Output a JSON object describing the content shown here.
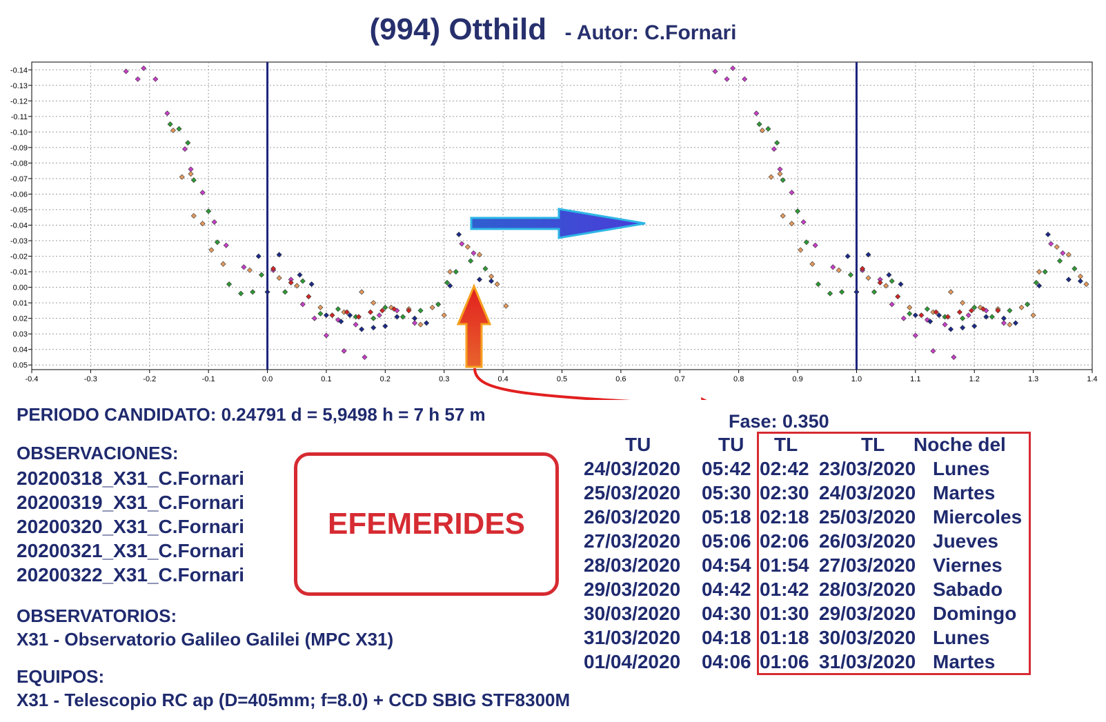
{
  "header": {
    "title": "(994) Otthild",
    "subtitle": "- Autor: C.Fornari"
  },
  "chart_data": {
    "type": "scatter",
    "title": "(994) Otthild",
    "subtitle": "- Autor: C.Fornari",
    "xlabel": "",
    "ylabel": "",
    "xlim": [
      -0.4,
      1.4
    ],
    "ylim": [
      -0.145,
      0.053
    ],
    "y_inverted": true,
    "grid": true,
    "x_ticks": [
      "-0.4",
      "-0.3",
      "-0.2",
      "-0.1",
      "0.0",
      "0.1",
      "0.2",
      "0.3",
      "0.4",
      "0.5",
      "0.6",
      "0.7",
      "0.8",
      "0.9",
      "1.0",
      "1.1",
      "1.2",
      "1.3",
      "1.4"
    ],
    "y_ticks": [
      "-0.14",
      "-0.13",
      "-0.12",
      "-0.11",
      "-0.10",
      "-0.09",
      "-0.08",
      "-0.07",
      "-0.06",
      "-0.05",
      "-0.04",
      "-0.03",
      "-0.02",
      "-0.01",
      "0.00",
      "0.01",
      "0.02",
      "0.03",
      "0.04",
      "0.05"
    ],
    "vertical_lines": [
      0.0,
      1.0
    ],
    "repeat_offset": 1.0,
    "series": [
      {
        "color": "#c83fc8",
        "points": [
          [
            -0.24,
            -0.139
          ],
          [
            -0.22,
            -0.134
          ],
          [
            -0.21,
            -0.141
          ],
          [
            -0.19,
            -0.134
          ],
          [
            -0.17,
            -0.112
          ],
          [
            -0.14,
            -0.089
          ],
          [
            -0.13,
            -0.076
          ],
          [
            -0.11,
            -0.061
          ],
          [
            -0.09,
            -0.042
          ],
          [
            -0.07,
            -0.027
          ],
          [
            -0.04,
            -0.013
          ],
          [
            0.01,
            -0.011
          ],
          [
            0.04,
            -0.005
          ],
          [
            0.06,
            0.011
          ],
          [
            0.08,
            0.02
          ],
          [
            0.1,
            0.031
          ],
          [
            0.12,
            0.021
          ],
          [
            0.13,
            0.041
          ],
          [
            0.15,
            0.024
          ],
          [
            0.165,
            0.045
          ],
          [
            0.19,
            0.018
          ],
          [
            0.22,
            0.015
          ],
          [
            0.25,
            0.023
          ],
          [
            0.33,
            -0.028
          ],
          [
            0.35,
            -0.022
          ]
        ]
      },
      {
        "color": "#e49a5e",
        "points": [
          [
            -0.16,
            -0.101
          ],
          [
            -0.145,
            -0.071
          ],
          [
            -0.13,
            -0.073
          ],
          [
            -0.125,
            -0.046
          ],
          [
            -0.11,
            -0.041
          ],
          [
            -0.095,
            -0.024
          ],
          [
            -0.075,
            -0.015
          ],
          [
            -0.03,
            -0.011
          ],
          [
            0.02,
            -0.006
          ],
          [
            0.05,
            -0.001
          ],
          [
            0.09,
            0.013
          ],
          [
            0.13,
            0.016
          ],
          [
            0.16,
            0.003
          ],
          [
            0.18,
            0.01
          ],
          [
            0.21,
            0.013
          ],
          [
            0.24,
            0.014
          ],
          [
            0.26,
            0.024
          ],
          [
            0.28,
            0.013
          ],
          [
            0.3,
            0.018
          ],
          [
            0.31,
            -0.01
          ],
          [
            0.34,
            -0.026
          ],
          [
            0.36,
            -0.021
          ],
          [
            0.38,
            -0.007
          ],
          [
            0.39,
            -0.002
          ],
          [
            0.405,
            0.012
          ]
        ]
      },
      {
        "color": "#2e9a35",
        "points": [
          [
            -0.165,
            -0.105
          ],
          [
            -0.15,
            -0.102
          ],
          [
            -0.135,
            -0.093
          ],
          [
            -0.125,
            -0.069
          ],
          [
            -0.1,
            -0.049
          ],
          [
            -0.085,
            -0.029
          ],
          [
            -0.065,
            -0.002
          ],
          [
            -0.045,
            0.004
          ],
          [
            -0.025,
            0.003
          ],
          [
            -0.01,
            -0.008
          ],
          [
            0.03,
            0.003
          ],
          [
            0.06,
            -0.004
          ],
          [
            0.09,
            0.017
          ],
          [
            0.12,
            0.014
          ],
          [
            0.15,
            0.019
          ],
          [
            0.18,
            0.02
          ],
          [
            0.2,
            0.013
          ],
          [
            0.23,
            0.019
          ],
          [
            0.26,
            0.015
          ],
          [
            0.29,
            0.011
          ],
          [
            0.305,
            -0.003
          ],
          [
            0.32,
            -0.01
          ],
          [
            0.345,
            -0.017
          ],
          [
            0.37,
            -0.012
          ]
        ]
      },
      {
        "color": "#1b2b8a",
        "points": [
          [
            -0.015,
            -0.02
          ],
          [
            0.0,
            0.003
          ],
          [
            0.02,
            -0.021
          ],
          [
            0.055,
            -0.008
          ],
          [
            0.075,
            -0.002
          ],
          [
            0.1,
            0.018
          ],
          [
            0.125,
            0.022
          ],
          [
            0.14,
            0.018
          ],
          [
            0.16,
            0.027
          ],
          [
            0.18,
            0.026
          ],
          [
            0.2,
            0.025
          ],
          [
            0.22,
            0.019
          ],
          [
            0.25,
            0.02
          ],
          [
            0.27,
            0.023
          ],
          [
            0.31,
            -0.001
          ],
          [
            0.325,
            -0.034
          ],
          [
            0.36,
            -0.005
          ],
          [
            0.38,
            -0.004
          ]
        ]
      },
      {
        "color": "#d02626",
        "points": [
          [
            0.01,
            -0.012
          ],
          [
            0.04,
            -0.003
          ],
          [
            0.07,
            0.006
          ],
          [
            0.11,
            0.018
          ],
          [
            0.135,
            0.016
          ],
          [
            0.155,
            0.019
          ],
          [
            0.175,
            0.016
          ],
          [
            0.195,
            0.015
          ],
          [
            0.215,
            0.014
          ],
          [
            0.24,
            0.015
          ]
        ]
      }
    ]
  },
  "annotations": {
    "period": "PERIODO CANDIDATO: 0.24791 d = 5,9498 h = 7 h 57 m",
    "fase": "Fase: 0.350",
    "efemerides": "EFEMERIDES"
  },
  "observaciones": {
    "heading": "OBSERVACIONES:",
    "items": [
      "20200318_X31_C.Fornari",
      "20200319_X31_C.Fornari",
      "20200320_X31_C.Fornari",
      "20200321_X31_C.Fornari",
      "20200322_X31_C.Fornari"
    ]
  },
  "observatorios": {
    "heading": "OBSERVATORIOS:",
    "line": "X31 - Observatorio Galileo Galilei (MPC X31)"
  },
  "equipos": {
    "heading": "EQUIPOS:",
    "line": "X31 - Telescopio RC ap (D=405mm; f=8.0) + CCD SBIG STF8300M"
  },
  "ephemeris": {
    "headers": [
      "TU",
      "TU",
      "TL",
      "TL",
      "Noche del"
    ],
    "rows": [
      [
        "24/03/2020",
        "05:42",
        "02:42",
        "23/03/2020",
        "Lunes"
      ],
      [
        "25/03/2020",
        "05:30",
        "02:30",
        "24/03/2020",
        "Martes"
      ],
      [
        "26/03/2020",
        "05:18",
        "02:18",
        "25/03/2020",
        "Miercoles"
      ],
      [
        "27/03/2020",
        "05:06",
        "02:06",
        "26/03/2020",
        "Jueves"
      ],
      [
        "28/03/2020",
        "04:54",
        "01:54",
        "27/03/2020",
        "Viernes"
      ],
      [
        "29/03/2020",
        "04:42",
        "01:42",
        "28/03/2020",
        "Sabado"
      ],
      [
        "30/03/2020",
        "04:30",
        "01:30",
        "29/03/2020",
        "Domingo"
      ],
      [
        "31/03/2020",
        "04:18",
        "01:18",
        "30/03/2020",
        "Lunes"
      ],
      [
        "01/04/2020",
        "04:06",
        "01:06",
        "31/03/2020",
        "Martes"
      ]
    ]
  },
  "colors": {
    "text": "#1f2a6e",
    "accent_red": "#d62b32",
    "arrow_blue": "#3a4fd8",
    "arrow_red": "#e23a2a",
    "vline": "#1b237a"
  }
}
